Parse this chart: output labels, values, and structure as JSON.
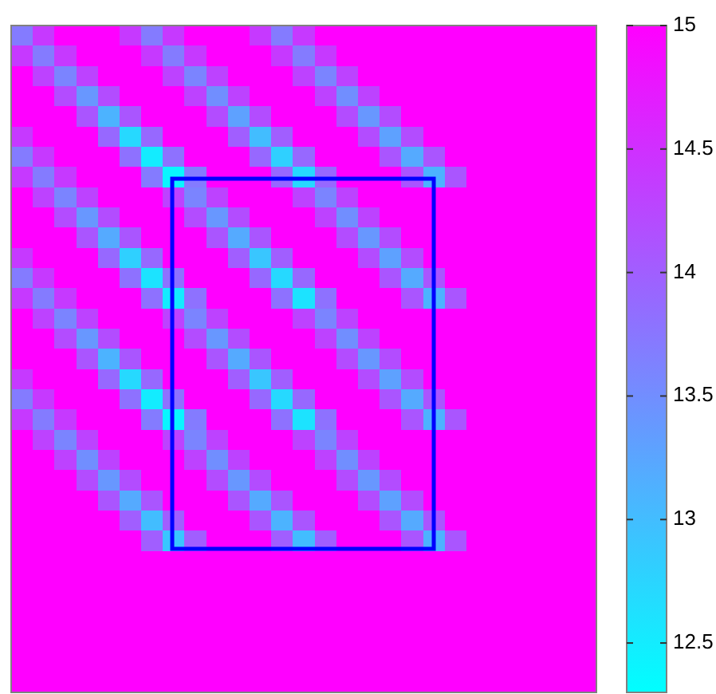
{
  "chart_data": {
    "type": "heatmap",
    "categories": [
      null,
      null,
      null,
      null,
      null,
      null,
      null,
      null,
      null,
      null,
      null,
      null,
      null,
      null,
      null,
      null,
      null,
      null,
      null,
      null,
      null,
      null,
      null,
      null,
      null,
      null,
      null
    ],
    "y_categories": [
      null,
      null,
      null,
      null,
      null,
      null,
      null,
      null,
      null,
      null,
      null,
      null,
      null,
      null,
      null,
      null,
      null,
      null,
      null,
      null,
      null,
      null,
      null,
      null,
      null,
      null,
      null,
      null,
      null,
      null,
      null,
      null,
      null
    ],
    "clim": [
      12.3,
      15
    ],
    "cticks": [
      12.5,
      13,
      13.5,
      14,
      14.5,
      15
    ],
    "cells": [
      [
        13.7,
        14.4,
        15,
        15,
        15,
        14.4,
        13.7,
        14.4,
        15,
        15,
        15,
        14.4,
        13.7,
        14.4,
        15,
        15,
        15,
        15,
        15,
        15,
        15,
        15,
        15,
        15,
        15,
        15,
        15
      ],
      [
        14.4,
        13.7,
        14.4,
        15,
        15,
        15,
        14.4,
        13.7,
        14.4,
        15,
        15,
        15,
        14.4,
        13.7,
        14.4,
        15,
        15,
        15,
        15,
        15,
        15,
        15,
        15,
        15,
        15,
        15,
        15
      ],
      [
        15,
        14.3,
        13.6,
        14.3,
        15,
        15,
        15,
        14.3,
        13.6,
        14.3,
        15,
        15,
        15,
        14.3,
        13.6,
        14.3,
        15,
        15,
        15,
        15,
        15,
        15,
        15,
        15,
        15,
        15,
        15
      ],
      [
        15,
        15,
        14.2,
        13.4,
        14.2,
        15,
        15,
        15,
        14.3,
        13.5,
        14.3,
        15,
        15,
        15,
        14.3,
        13.5,
        14.3,
        15,
        15,
        15,
        15,
        15,
        15,
        15,
        15,
        15,
        15
      ],
      [
        15,
        15,
        15,
        14.1,
        13.1,
        14.1,
        15,
        15,
        15,
        14.2,
        13.3,
        14.2,
        15,
        15,
        15,
        14.2,
        13.4,
        14.2,
        15,
        15,
        15,
        15,
        15,
        15,
        15,
        15,
        15
      ],
      [
        14.4,
        15,
        15,
        15,
        13.9,
        12.7,
        13.9,
        15,
        15,
        15,
        14,
        13,
        14,
        15,
        15,
        15,
        14.2,
        13.3,
        14.2,
        15,
        15,
        15,
        15,
        15,
        15,
        15,
        15
      ],
      [
        13.7,
        14.4,
        15,
        15,
        15,
        13.8,
        12.5,
        13.8,
        15,
        15,
        15,
        13.9,
        12.8,
        13.9,
        15,
        15,
        15,
        14.1,
        13.2,
        14.1,
        15,
        15,
        15,
        15,
        15,
        15,
        15
      ],
      [
        14.4,
        13.7,
        14.4,
        15,
        15,
        15,
        13.7,
        12.4,
        13.7,
        15,
        15,
        15,
        13.9,
        12.7,
        13.9,
        15,
        15,
        15,
        14.1,
        13.1,
        14.1,
        15,
        15,
        15,
        15,
        15,
        15
      ],
      [
        15,
        14.3,
        13.6,
        14.3,
        15,
        15,
        15,
        14.3,
        13.6,
        14.3,
        15,
        15,
        15,
        14.3,
        13.6,
        14.3,
        15,
        15,
        15,
        15,
        15,
        15,
        15,
        15,
        15,
        15,
        15
      ],
      [
        15,
        15,
        14.2,
        13.4,
        14.2,
        15,
        15,
        15,
        14.2,
        13.4,
        14.2,
        15,
        15,
        15,
        14.3,
        13.5,
        14.3,
        15,
        15,
        15,
        15,
        15,
        15,
        15,
        15,
        15,
        15
      ],
      [
        15,
        15,
        15,
        14.1,
        13.2,
        14.1,
        15,
        15,
        15,
        14.1,
        13.2,
        14.1,
        15,
        15,
        15,
        14.2,
        13.4,
        14.2,
        15,
        15,
        15,
        15,
        15,
        15,
        15,
        15,
        15
      ],
      [
        14.4,
        15,
        15,
        15,
        13.9,
        12.8,
        13.9,
        15,
        15,
        15,
        14,
        12.9,
        14,
        15,
        15,
        15,
        14.2,
        13.3,
        14.2,
        15,
        15,
        15,
        15,
        15,
        15,
        15,
        15
      ],
      [
        13.7,
        14.4,
        15,
        15,
        15,
        13.8,
        12.6,
        13.8,
        15,
        15,
        15,
        13.9,
        12.7,
        13.9,
        15,
        15,
        15,
        14.1,
        13.2,
        14.1,
        15,
        15,
        15,
        15,
        15,
        15,
        15
      ],
      [
        14.4,
        13.7,
        14.4,
        15,
        15,
        15,
        13.8,
        12.5,
        13.8,
        15,
        15,
        15,
        13.8,
        12.6,
        13.8,
        15,
        15,
        15,
        14.1,
        13.1,
        14.1,
        15,
        15,
        15,
        15,
        15,
        15
      ],
      [
        15,
        14.3,
        13.6,
        14.3,
        15,
        15,
        15,
        14.3,
        13.6,
        14.3,
        15,
        15,
        15,
        14.3,
        13.6,
        14.3,
        15,
        15,
        15,
        15,
        15,
        15,
        15,
        15,
        15,
        15,
        15
      ],
      [
        15,
        15,
        14.2,
        13.4,
        14.2,
        15,
        15,
        15,
        14.2,
        13.4,
        14.2,
        15,
        15,
        15,
        14.3,
        13.5,
        14.3,
        15,
        15,
        15,
        15,
        15,
        15,
        15,
        15,
        15,
        15
      ],
      [
        15,
        15,
        15,
        14.1,
        13.1,
        14.1,
        15,
        15,
        15,
        14.1,
        13.2,
        14.1,
        15,
        15,
        15,
        14.2,
        13.4,
        14.2,
        15,
        15,
        15,
        15,
        15,
        15,
        15,
        15,
        15
      ],
      [
        14.4,
        15,
        15,
        15,
        13.9,
        12.7,
        13.9,
        15,
        15,
        15,
        14,
        12.9,
        14,
        15,
        15,
        15,
        14.2,
        13.3,
        14.2,
        15,
        15,
        15,
        15,
        15,
        15,
        15,
        15
      ],
      [
        13.7,
        14.4,
        15,
        15,
        15,
        13.8,
        12.5,
        13.8,
        15,
        15,
        15,
        13.9,
        12.7,
        13.9,
        15,
        15,
        15,
        14.1,
        13.2,
        14.1,
        15,
        15,
        15,
        15,
        15,
        15,
        15
      ],
      [
        14.4,
        13.7,
        14.4,
        15,
        15,
        15,
        13.7,
        12.4,
        13.7,
        15,
        15,
        15,
        13.8,
        12.6,
        13.8,
        15,
        15,
        15,
        14.1,
        13.1,
        14.1,
        15,
        15,
        15,
        15,
        15,
        15
      ],
      [
        15,
        14.3,
        13.6,
        14.3,
        15,
        15,
        15,
        14.3,
        13.6,
        14.3,
        15,
        15,
        15,
        14.3,
        13.6,
        14.3,
        15,
        15,
        15,
        15,
        15,
        15,
        15,
        15,
        15,
        15,
        15
      ],
      [
        15,
        15,
        14.3,
        13.5,
        14.3,
        15,
        15,
        15,
        14.3,
        13.5,
        14.3,
        15,
        15,
        15,
        14.3,
        13.5,
        14.3,
        15,
        15,
        15,
        15,
        15,
        15,
        15,
        15,
        15,
        15
      ],
      [
        15,
        15,
        15,
        14.2,
        13.4,
        14.2,
        15,
        15,
        15,
        14.2,
        13.4,
        14.2,
        15,
        15,
        15,
        14.2,
        13.4,
        14.2,
        15,
        15,
        15,
        15,
        15,
        15,
        15,
        15,
        15
      ],
      [
        15,
        15,
        15,
        15,
        14.1,
        13.2,
        14.1,
        15,
        15,
        15,
        14.1,
        13.2,
        14.1,
        15,
        15,
        15,
        14.2,
        13.3,
        14.2,
        15,
        15,
        15,
        15,
        15,
        15,
        15,
        15
      ],
      [
        15,
        15,
        15,
        15,
        15,
        14,
        13,
        14,
        15,
        15,
        15,
        14.1,
        13.1,
        14.1,
        15,
        15,
        15,
        14.1,
        13.2,
        14.1,
        15,
        15,
        15,
        15,
        15,
        15,
        15
      ],
      [
        15,
        15,
        15,
        15,
        15,
        15,
        14,
        12.9,
        14,
        15,
        15,
        15,
        14,
        13,
        14,
        15,
        15,
        15,
        14.1,
        13.1,
        14.1,
        15,
        15,
        15,
        15,
        15,
        15
      ],
      [
        15,
        15,
        15,
        15,
        15,
        15,
        15,
        15,
        15,
        15,
        15,
        15,
        15,
        15,
        15,
        15,
        15,
        15,
        15,
        15,
        15,
        15,
        15,
        15,
        15,
        15,
        15
      ],
      [
        15,
        15,
        15,
        15,
        15,
        15,
        15,
        15,
        15,
        15,
        15,
        15,
        15,
        15,
        15,
        15,
        15,
        15,
        15,
        15,
        15,
        15,
        15,
        15,
        15,
        15,
        15
      ],
      [
        15,
        15,
        15,
        15,
        15,
        15,
        15,
        15,
        15,
        15,
        15,
        15,
        15,
        15,
        15,
        15,
        15,
        15,
        15,
        15,
        15,
        15,
        15,
        15,
        15,
        15,
        15
      ],
      [
        15,
        15,
        15,
        15,
        15,
        15,
        15,
        15,
        15,
        15,
        15,
        15,
        15,
        15,
        15,
        15,
        15,
        15,
        15,
        15,
        15,
        15,
        15,
        15,
        15,
        15,
        15
      ],
      [
        15,
        15,
        15,
        15,
        15,
        15,
        15,
        15,
        15,
        15,
        15,
        15,
        15,
        15,
        15,
        15,
        15,
        15,
        15,
        15,
        15,
        15,
        15,
        15,
        15,
        15,
        15
      ],
      [
        15,
        15,
        15,
        15,
        15,
        15,
        15,
        15,
        15,
        15,
        15,
        15,
        15,
        15,
        15,
        15,
        15,
        15,
        15,
        15,
        15,
        15,
        15,
        15,
        15,
        15,
        15
      ],
      [
        15,
        15,
        15,
        15,
        15,
        15,
        15,
        15,
        15,
        15,
        15,
        15,
        15,
        15,
        15,
        15,
        15,
        15,
        15,
        15,
        15,
        15,
        15,
        15,
        15,
        15,
        15
      ]
    ]
  }
}
